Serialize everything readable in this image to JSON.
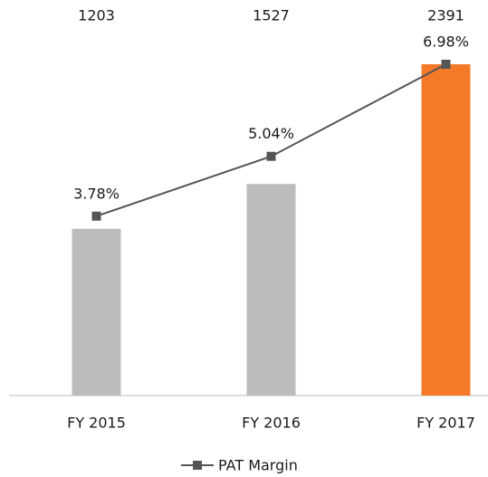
{
  "chart_data": {
    "type": "bar+line",
    "categories": [
      "FY 2015",
      "FY 2016",
      "FY 2017"
    ],
    "series": [
      {
        "type": "bar",
        "colors": [
          "#bcbcbe",
          "#bcbcbe",
          "#f47a2a"
        ],
        "values": [
          1203,
          1527,
          2391
        ]
      },
      {
        "type": "line",
        "name": "PAT Margin",
        "color": "#555555",
        "axis": "y2",
        "values": [
          3.78,
          5.04,
          6.98
        ],
        "value_labels": [
          "3.78%",
          "5.04%",
          "6.98%"
        ]
      }
    ],
    "legend": "bottom"
  }
}
